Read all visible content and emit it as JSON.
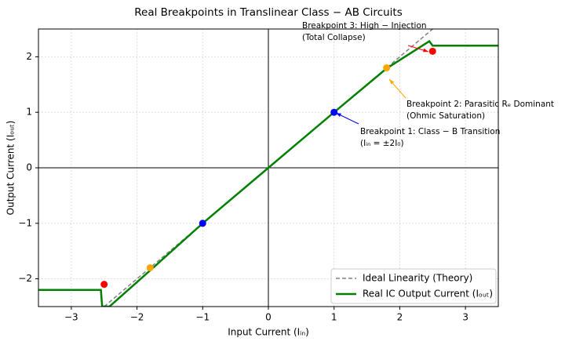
{
  "chart_data": {
    "type": "line",
    "title": "Real Breakpoints in Translinear Class − AB Circuits",
    "xlabel": "Input Current (Iᵢₙ)",
    "ylabel": "Output Current (Iₒᵤₜ)",
    "xlim": [
      -3.5,
      3.5
    ],
    "ylim": [
      -2.5,
      2.5
    ],
    "xticks": [
      {
        "value": -3,
        "label": "−3"
      },
      {
        "value": -2,
        "label": "−2"
      },
      {
        "value": -1,
        "label": "−1"
      },
      0,
      1,
      2,
      3
    ],
    "yticks": [
      {
        "value": -2,
        "label": "−2"
      },
      {
        "value": -1,
        "label": "−1"
      },
      0,
      1,
      2
    ],
    "grid": true,
    "legend": "lower right",
    "series": [
      {
        "name": "Ideal Linearity (Theory)",
        "color": "#808080",
        "dashed": true,
        "x": [
          -2.5,
          2.5
        ],
        "values": [
          -2.5,
          2.5
        ]
      },
      {
        "name": "Real IC Output Current (Iₒᵤₜ)",
        "color": "#008000",
        "dashed": false,
        "x": [
          -3.5,
          -2.55,
          -2.53,
          -2.42,
          -1.8,
          -1,
          0,
          1,
          1.8,
          2.45,
          2.5,
          3.5
        ],
        "values": [
          -2.2,
          -2.2,
          -2.5,
          -2.5,
          -1.85,
          -1,
          0,
          1,
          1.79,
          2.28,
          2.2,
          2.2
        ]
      }
    ],
    "markers": {
      "x": [
        -1,
        1,
        -1.8,
        1.8,
        -2.5,
        2.5
      ],
      "values": [
        -1,
        1,
        -1.8,
        1.8,
        -2.1,
        2.1
      ],
      "colors": [
        "#0000ff",
        "#0000ff",
        "#ffa500",
        "#ffa500",
        "#ff0000",
        "#ff0000"
      ]
    },
    "annotations": [
      {
        "text": [
          "Breakpoint 1:  Class − B Transition",
          "(Iᵢₙ = ±2I₀)"
        ],
        "color": "#0000ff"
      },
      {
        "text": [
          "Breakpoint 2:  Parasitic Rₑ Dominant",
          "(Ohmic Saturation)"
        ],
        "color": "#ffa500"
      },
      {
        "text": [
          "Breakpoint 3:  High − Injection",
          "(Total Collapse)"
        ],
        "color": "#ff0000"
      }
    ]
  }
}
